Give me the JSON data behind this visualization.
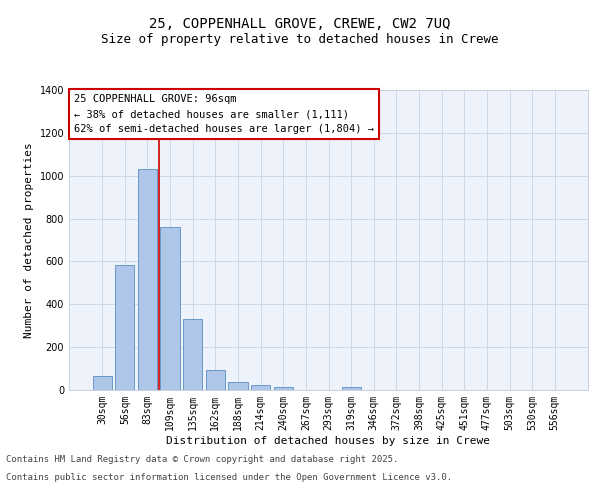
{
  "title1": "25, COPPENHALL GROVE, CREWE, CW2 7UQ",
  "title2": "Size of property relative to detached houses in Crewe",
  "xlabel": "Distribution of detached houses by size in Crewe",
  "ylabel": "Number of detached properties",
  "categories": [
    "30sqm",
    "56sqm",
    "83sqm",
    "109sqm",
    "135sqm",
    "162sqm",
    "188sqm",
    "214sqm",
    "240sqm",
    "267sqm",
    "293sqm",
    "319sqm",
    "346sqm",
    "372sqm",
    "398sqm",
    "425sqm",
    "451sqm",
    "477sqm",
    "503sqm",
    "530sqm",
    "556sqm"
  ],
  "values": [
    65,
    585,
    1030,
    760,
    330,
    95,
    38,
    22,
    12,
    0,
    0,
    12,
    0,
    0,
    0,
    0,
    0,
    0,
    0,
    0,
    0
  ],
  "bar_color": "#aec6e8",
  "bar_edge_color": "#5a8fc2",
  "grid_color": "#d0d8e8",
  "background_color": "#eef2fa",
  "annotation_box_color": "#ffffff",
  "annotation_border_color": "#cc0000",
  "vline_color": "#cc0000",
  "annotation_title": "25 COPPENHALL GROVE: 96sqm",
  "annotation_line1": "← 38% of detached houses are smaller (1,111)",
  "annotation_line2": "62% of semi-detached houses are larger (1,804) →",
  "footnote1": "Contains HM Land Registry data © Crown copyright and database right 2025.",
  "footnote2": "Contains public sector information licensed under the Open Government Licence v3.0.",
  "ylim": [
    0,
    1400
  ],
  "yticks": [
    0,
    200,
    400,
    600,
    800,
    1000,
    1200,
    1400
  ],
  "title_fontsize": 10,
  "subtitle_fontsize": 9,
  "label_fontsize": 8,
  "tick_fontsize": 7,
  "annot_fontsize": 7.5,
  "footnote_fontsize": 6.5
}
